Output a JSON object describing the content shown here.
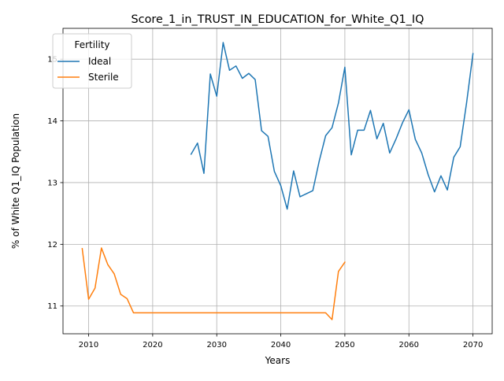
{
  "chart_data": {
    "type": "line",
    "title": "Score_1_in_TRUST_IN_EDUCATION_for_White_Q1_IQ",
    "xlabel": "Years",
    "ylabel": "% of White Q1_IQ Population",
    "xlim": [
      2006,
      2073
    ],
    "ylim": [
      10.55,
      15.5
    ],
    "x_ticks": [
      2010,
      2020,
      2030,
      2040,
      2050,
      2060,
      2070
    ],
    "y_ticks": [
      11,
      12,
      13,
      14,
      15
    ],
    "grid": true,
    "legend": {
      "title": "Fertility",
      "placement": "top-left"
    },
    "series": [
      {
        "name": "Ideal",
        "color": "#1f77b4",
        "points": [
          [
            2026,
            13.46
          ],
          [
            2027,
            13.64
          ],
          [
            2028,
            13.15
          ],
          [
            2029,
            14.76
          ],
          [
            2030,
            14.4
          ],
          [
            2031,
            15.27
          ],
          [
            2032,
            14.82
          ],
          [
            2033,
            14.89
          ],
          [
            2034,
            14.69
          ],
          [
            2035,
            14.77
          ],
          [
            2036,
            14.67
          ],
          [
            2037,
            13.84
          ],
          [
            2038,
            13.75
          ],
          [
            2039,
            13.18
          ],
          [
            2040,
            12.95
          ],
          [
            2041,
            12.57
          ],
          [
            2042,
            13.19
          ],
          [
            2043,
            12.77
          ],
          [
            2044,
            12.82
          ],
          [
            2045,
            12.87
          ],
          [
            2046,
            13.35
          ],
          [
            2047,
            13.76
          ],
          [
            2048,
            13.89
          ],
          [
            2049,
            14.29
          ],
          [
            2050,
            14.87
          ],
          [
            2051,
            13.45
          ],
          [
            2052,
            13.85
          ],
          [
            2053,
            13.85
          ],
          [
            2054,
            14.17
          ],
          [
            2055,
            13.71
          ],
          [
            2056,
            13.96
          ],
          [
            2057,
            13.48
          ],
          [
            2058,
            13.71
          ],
          [
            2059,
            13.97
          ],
          [
            2060,
            14.18
          ],
          [
            2061,
            13.7
          ],
          [
            2062,
            13.48
          ],
          [
            2063,
            13.13
          ],
          [
            2064,
            12.85
          ],
          [
            2065,
            13.11
          ],
          [
            2066,
            12.88
          ],
          [
            2067,
            13.41
          ],
          [
            2068,
            13.58
          ],
          [
            2069,
            14.29
          ],
          [
            2070,
            15.09
          ]
        ]
      },
      {
        "name": "Sterile",
        "color": "#ff7f0e",
        "points": [
          [
            2009,
            11.93
          ],
          [
            2010,
            11.11
          ],
          [
            2011,
            11.29
          ],
          [
            2012,
            11.94
          ],
          [
            2013,
            11.67
          ],
          [
            2014,
            11.52
          ],
          [
            2015,
            11.19
          ],
          [
            2016,
            11.12
          ],
          [
            2017,
            10.89
          ],
          [
            2018,
            10.89
          ],
          [
            2020,
            10.89
          ],
          [
            2025,
            10.89
          ],
          [
            2030,
            10.89
          ],
          [
            2035,
            10.89
          ],
          [
            2040,
            10.89
          ],
          [
            2045,
            10.89
          ],
          [
            2046,
            10.89
          ],
          [
            2047,
            10.89
          ],
          [
            2048,
            10.78
          ],
          [
            2049,
            11.56
          ],
          [
            2050,
            11.71
          ]
        ]
      }
    ]
  }
}
